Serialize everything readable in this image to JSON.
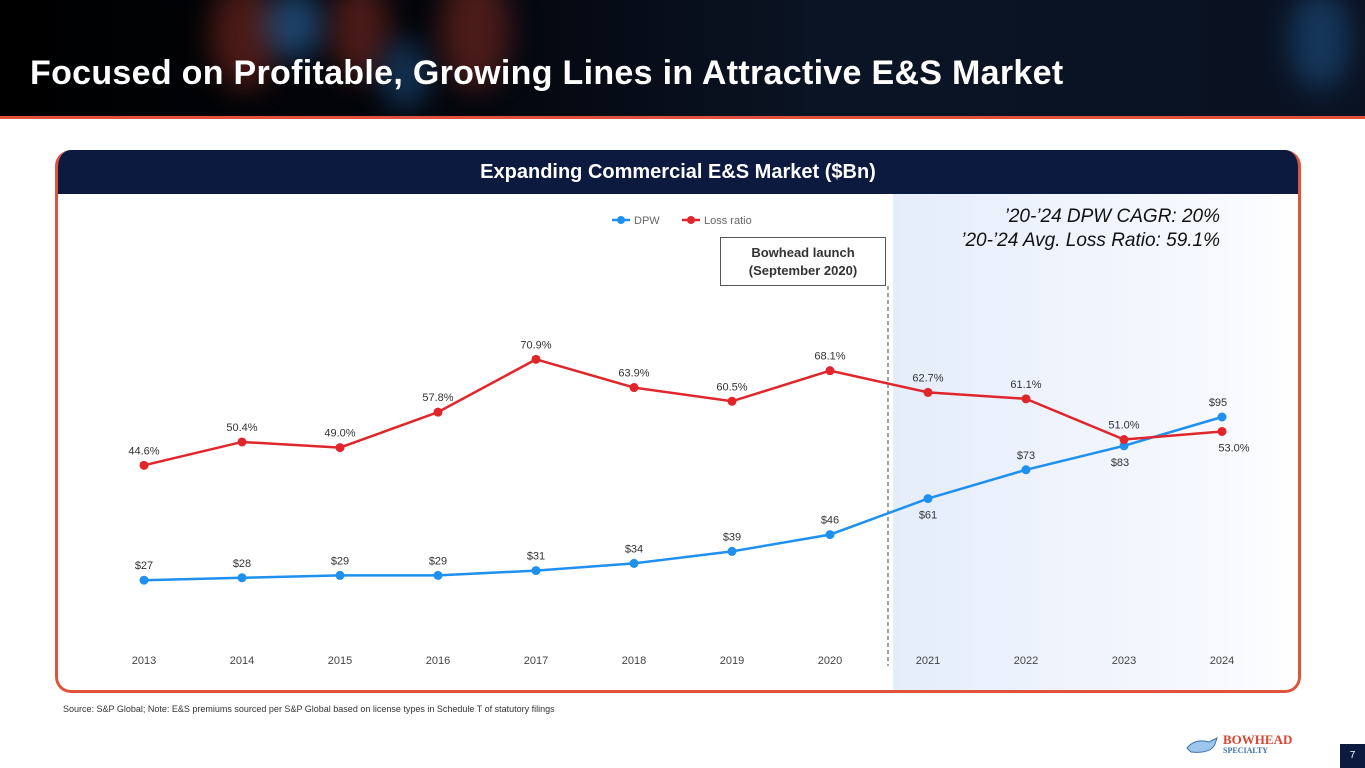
{
  "header": {
    "title": "Focused on Profitable, Growing Lines in Attractive E&S Market"
  },
  "card": {
    "title": "Expanding Commercial E&S Market ($Bn)"
  },
  "annotation": {
    "line1": "Bowhead launch",
    "line2": "(September 2020)"
  },
  "callout": {
    "line1": "’20-’24 DPW CAGR: 20%",
    "line2": "’20-’24 Avg. Loss Ratio: 59.1%"
  },
  "footer": {
    "source": "Source: S&P Global; Note: E&S premiums sourced per S&P Global based on license types in Schedule T of statutory filings",
    "page": "7",
    "logo_text": "BOWHEAD SPECIALTY"
  },
  "colors": {
    "dpw": "#1e90f0",
    "loss": "#e0262b",
    "accent": "#e0533a",
    "navy": "#0c1a40"
  },
  "chart_data": {
    "type": "line",
    "categories": [
      "2013",
      "2014",
      "2015",
      "2016",
      "2017",
      "2018",
      "2019",
      "2020",
      "2021",
      "2022",
      "2023",
      "2024"
    ],
    "legend_position": "top-center",
    "grid": false,
    "series": [
      {
        "name": "DPW",
        "axis": "left",
        "ylim": [
          0,
          140
        ],
        "values": [
          27,
          28,
          29,
          29,
          31,
          34,
          39,
          46,
          61,
          73,
          83,
          95
        ],
        "labels": [
          "$27",
          "$28",
          "$29",
          "$29",
          "$31",
          "$34",
          "$39",
          "$46",
          "$61",
          "$73",
          "$83",
          "$95"
        ]
      },
      {
        "name": "Loss ratio",
        "axis": "right",
        "ylim": [
          0,
          83.4
        ],
        "values": [
          44.6,
          50.4,
          49.0,
          57.8,
          70.9,
          63.9,
          60.5,
          68.1,
          62.7,
          61.1,
          51.0,
          53.0
        ],
        "labels": [
          "44.6%",
          "50.4%",
          "49.0%",
          "57.8%",
          "70.9%",
          "63.9%",
          "60.5%",
          "68.1%",
          "62.7%",
          "61.1%",
          "51.0%",
          "53.0%"
        ]
      }
    ],
    "highlight_from": "2021"
  }
}
